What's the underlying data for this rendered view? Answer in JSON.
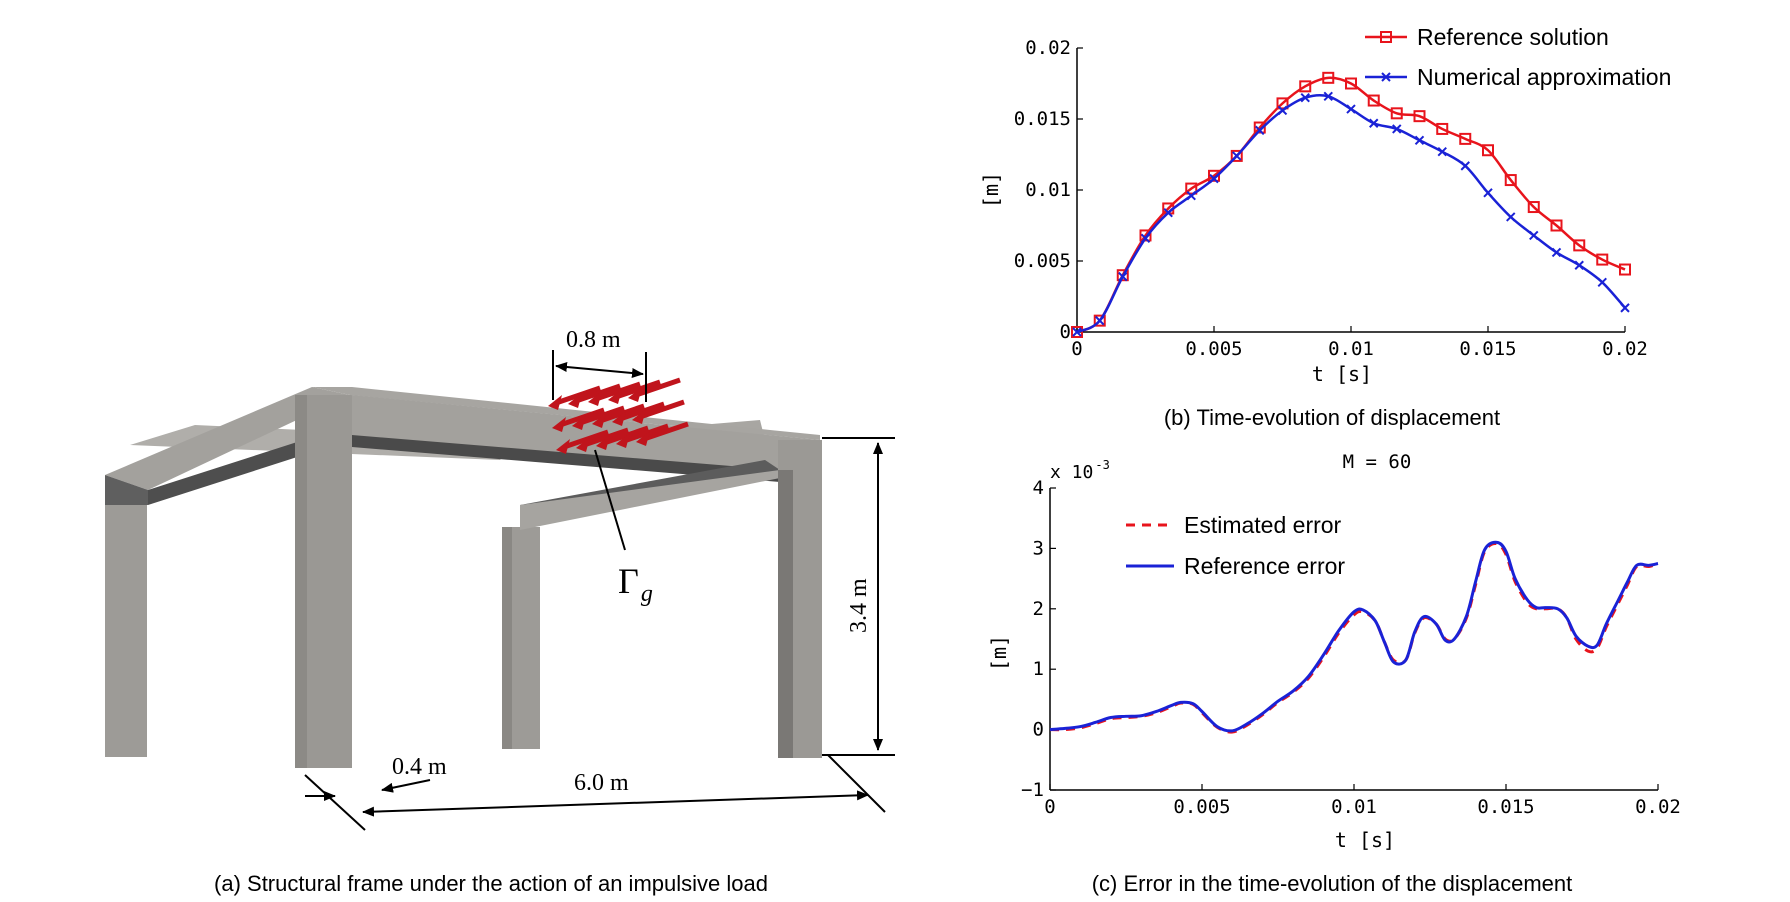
{
  "frame": {
    "dim_load_width": "0.8 m",
    "dim_height": "3.4 m",
    "dim_column": "0.4 m",
    "dim_span": "6.0 m",
    "gamma_symbol": "Γ",
    "gamma_subscript": "g",
    "caption": "(a) Structural frame under the action of an impulsive load",
    "colors": {
      "beam_top": "#a3a19d",
      "beam_side": "#5d5d5d",
      "column": "#9a9894",
      "load": "#c0141c"
    }
  },
  "chart_data": [
    {
      "type": "line",
      "caption": "(b) Time-evolution of displacement",
      "xlabel": "t [s]",
      "ylabel": "[m]",
      "xlim": [
        0,
        0.02
      ],
      "ylim": [
        0,
        0.02
      ],
      "xticks": [
        0,
        0.005,
        0.01,
        0.015,
        0.02
      ],
      "xtick_labels": [
        "0",
        "0.005",
        "0.01",
        "0.015",
        "0.02"
      ],
      "yticks": [
        0,
        0.005,
        0.01,
        0.015,
        0.02
      ],
      "ytick_labels": [
        "0",
        "0.005",
        "0.01",
        "0.015",
        "0.02"
      ],
      "legend_position": "top-right",
      "x": [
        0,
        0.00083,
        0.00167,
        0.0025,
        0.00333,
        0.00417,
        0.005,
        0.00583,
        0.00667,
        0.0075,
        0.00833,
        0.00917,
        0.01,
        0.01083,
        0.01167,
        0.0125,
        0.01333,
        0.01417,
        0.015,
        0.01583,
        0.01667,
        0.0175,
        0.01833,
        0.01917,
        0.02
      ],
      "series": [
        {
          "name": "Reference solution",
          "color": "#e8141c",
          "marker": "square",
          "values": [
            0,
            0.0008,
            0.004,
            0.0068,
            0.0087,
            0.0101,
            0.011,
            0.0124,
            0.0144,
            0.0161,
            0.0173,
            0.0179,
            0.0175,
            0.0163,
            0.0154,
            0.0152,
            0.0143,
            0.0136,
            0.0128,
            0.0107,
            0.0088,
            0.0075,
            0.0061,
            0.0051,
            0.0044
          ]
        },
        {
          "name": "Numerical approximation",
          "color": "#1a22d6",
          "marker": "x",
          "values": [
            0,
            0.0008,
            0.0039,
            0.0066,
            0.0084,
            0.0096,
            0.0108,
            0.0124,
            0.0142,
            0.0156,
            0.0165,
            0.0166,
            0.0157,
            0.0147,
            0.0143,
            0.0135,
            0.0127,
            0.0117,
            0.0098,
            0.0081,
            0.0068,
            0.0056,
            0.0047,
            0.0035,
            0.0017
          ]
        }
      ]
    },
    {
      "type": "line",
      "title": "M = 60",
      "caption": "(c) Error in the time-evolution of the displacement",
      "xlabel": "t [s]",
      "ylabel": "[m]",
      "scale_label": "x 10",
      "scale_exponent": "-3",
      "xlim": [
        0,
        0.02
      ],
      "ylim": [
        -1,
        4
      ],
      "xticks": [
        0,
        0.005,
        0.01,
        0.015,
        0.02
      ],
      "xtick_labels": [
        "0",
        "0.005",
        "0.01",
        "0.015",
        "0.02"
      ],
      "yticks": [
        -1,
        0,
        1,
        2,
        3,
        4
      ],
      "ytick_labels": [
        "−1",
        "0",
        "1",
        "2",
        "3",
        "4"
      ],
      "legend_position": "top-left",
      "x": [
        0,
        0.0005,
        0.001,
        0.0015,
        0.002,
        0.0025,
        0.003,
        0.0035,
        0.004,
        0.0043,
        0.0047,
        0.005,
        0.0055,
        0.006,
        0.0065,
        0.007,
        0.0075,
        0.008,
        0.0085,
        0.009,
        0.0095,
        0.01,
        0.0103,
        0.0107,
        0.011,
        0.0113,
        0.0117,
        0.012,
        0.0123,
        0.0127,
        0.013,
        0.0133,
        0.0137,
        0.014,
        0.0143,
        0.0147,
        0.015,
        0.0153,
        0.0157,
        0.016,
        0.0163,
        0.0167,
        0.017,
        0.0173,
        0.0177,
        0.018,
        0.0183,
        0.0187,
        0.019,
        0.0193,
        0.0197,
        0.02
      ],
      "series": [
        {
          "name": "Estimated error",
          "color": "#e8141c",
          "dash": "dashed",
          "values": [
            0,
            0.0,
            0.03,
            0.1,
            0.18,
            0.2,
            0.22,
            0.28,
            0.38,
            0.44,
            0.42,
            0.28,
            0.04,
            -0.04,
            0.08,
            0.25,
            0.45,
            0.62,
            0.85,
            1.2,
            1.6,
            1.9,
            1.95,
            1.8,
            1.45,
            1.15,
            1.15,
            1.6,
            1.85,
            1.75,
            1.5,
            1.5,
            1.85,
            2.4,
            2.95,
            3.08,
            2.9,
            2.45,
            2.1,
            2.0,
            2.0,
            2.0,
            1.85,
            1.5,
            1.3,
            1.35,
            1.7,
            2.1,
            2.4,
            2.7,
            2.7,
            2.75
          ]
        },
        {
          "name": "Reference error",
          "color": "#1a22d6",
          "dash": "solid",
          "values": [
            0,
            0.02,
            0.05,
            0.12,
            0.2,
            0.22,
            0.23,
            0.3,
            0.4,
            0.45,
            0.43,
            0.3,
            0.05,
            -0.02,
            0.1,
            0.27,
            0.47,
            0.64,
            0.88,
            1.24,
            1.64,
            1.95,
            1.98,
            1.8,
            1.45,
            1.12,
            1.15,
            1.62,
            1.87,
            1.75,
            1.48,
            1.5,
            1.88,
            2.45,
            2.98,
            3.1,
            2.95,
            2.5,
            2.15,
            2.02,
            2.02,
            2.0,
            1.85,
            1.55,
            1.38,
            1.4,
            1.75,
            2.15,
            2.45,
            2.72,
            2.72,
            2.75
          ]
        }
      ]
    }
  ]
}
